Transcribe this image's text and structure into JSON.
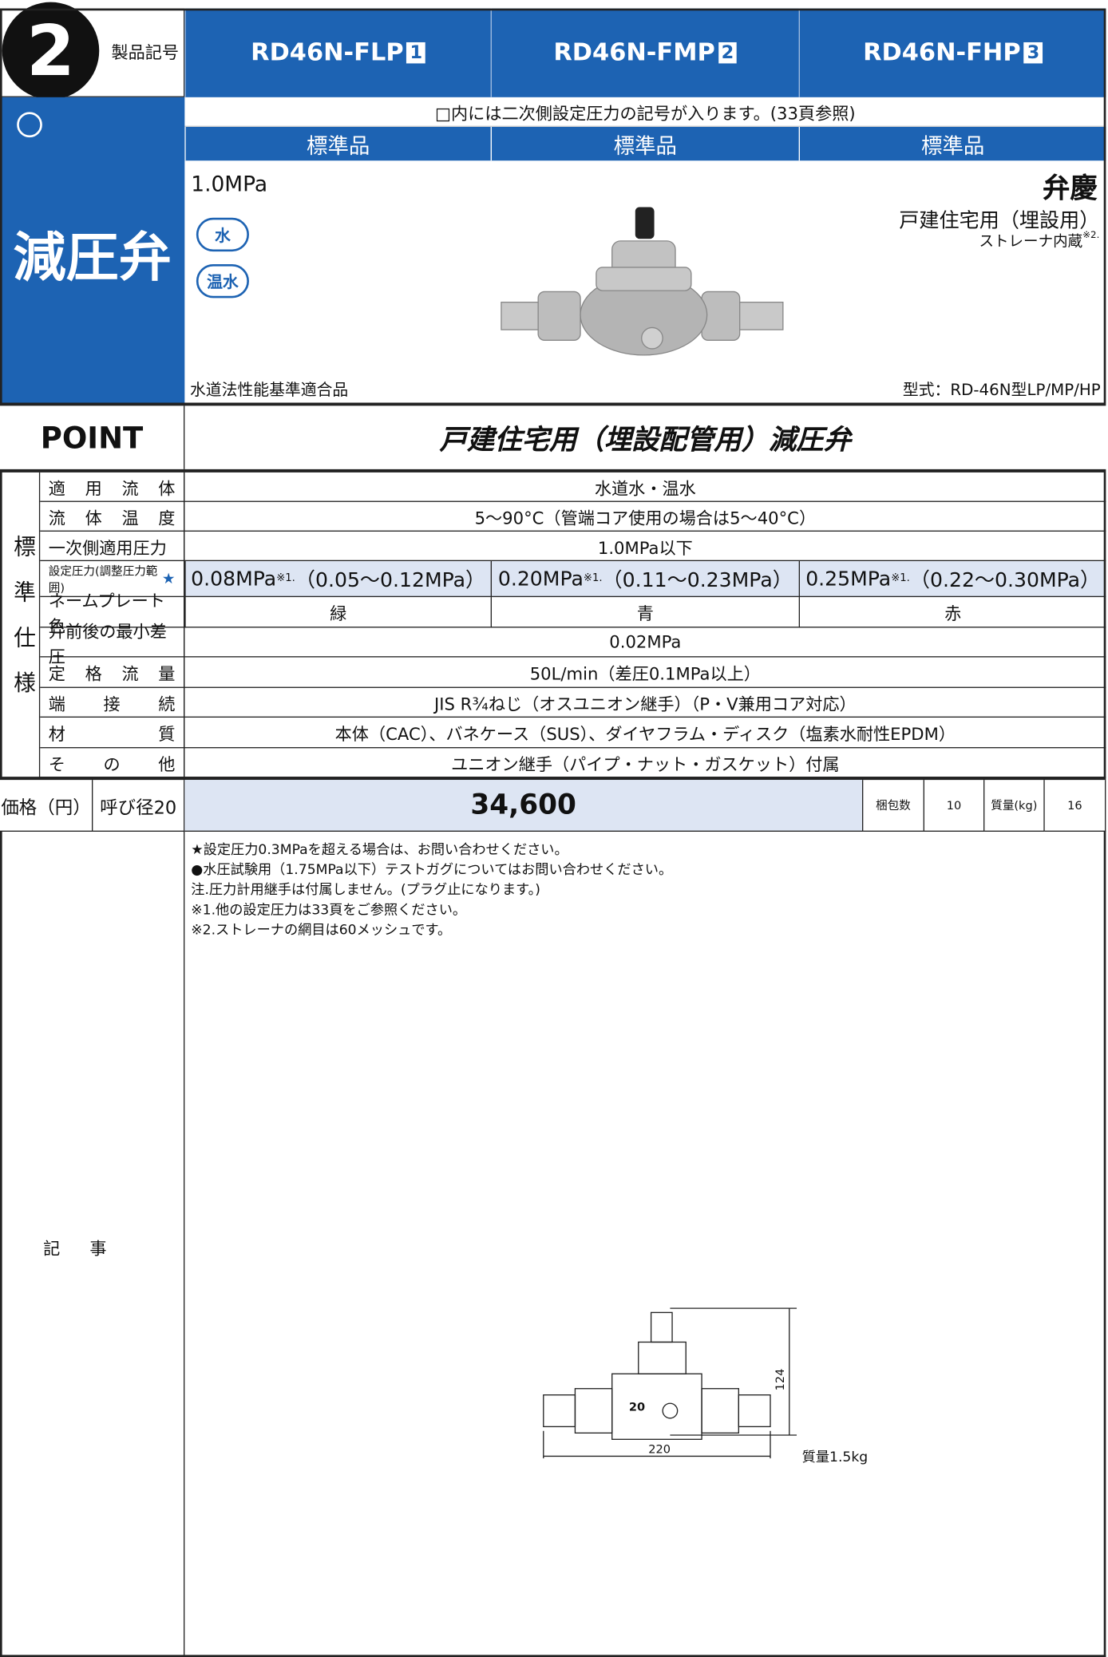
{
  "header": {
    "section_number": "2",
    "product_code_label": "製品記号",
    "models": [
      {
        "name": "RD46N-FLP",
        "suffix": "1"
      },
      {
        "name": "RD46N-FMP",
        "suffix": "2"
      },
      {
        "name": "RD46N-FHP",
        "suffix": "3"
      }
    ],
    "note": "□内には二次側設定圧力の記号が入ります。(33頁参照)",
    "grades": [
      "標準品",
      "標準品",
      "標準品"
    ]
  },
  "product": {
    "category": "減圧弁",
    "max_pressure": "1.0MPa",
    "fluids": [
      "水",
      "温水"
    ],
    "brand": "弁慶",
    "usage": "戸建住宅用（埋設用）",
    "strainer": "ストレーナ内蔵",
    "strainer_note": "※2.",
    "certification": "水道法性能基準適合品",
    "model_type": "型式：RD-46N型LP/MP/HP"
  },
  "point": {
    "label": "POINT",
    "text": "戸建住宅用（埋設配管用）減圧弁"
  },
  "spec": {
    "group_label": "標準仕様",
    "rows": [
      {
        "label": "適用流体",
        "value": "水道水・温水"
      },
      {
        "label": "流体温度",
        "value": "5〜90°C（管端コア使用の場合は5〜40°C）"
      },
      {
        "label": "一次側適用圧力",
        "value": "1.0MPa以下"
      },
      {
        "label": "設定圧力(調整圧力範囲)",
        "mark": "★",
        "values": [
          {
            "value": "0.08MPa",
            "note": "※1.",
            "range": "（0.05〜0.12MPa）"
          },
          {
            "value": "0.20MPa",
            "note": "※1.",
            "range": "（0.11〜0.23MPa）"
          },
          {
            "value": "0.25MPa",
            "note": "※1.",
            "range": "（0.22〜0.30MPa）"
          }
        ]
      },
      {
        "label": "ネームプレート色",
        "values": [
          "緑",
          "青",
          "赤"
        ]
      },
      {
        "label": "弁前後の最小差圧",
        "value": "0.02MPa"
      },
      {
        "label": "定格流量",
        "value": "50L/min（差圧0.1MPa以上）"
      },
      {
        "label": "端接続",
        "value": "JIS R¾ねじ（オスユニオン継手）（P・V兼用コア対応）"
      },
      {
        "label": "材質",
        "value": "本体（CAC）、バネケース（SUS）、ダイヤフラム・ディスク（塩素水耐性EPDM）"
      },
      {
        "label": "その他",
        "value": "ユニオン継手（パイプ・ナット・ガスケット）付属"
      }
    ]
  },
  "price": {
    "label": "価格（円）",
    "size": "呼び径20",
    "value": "34,600",
    "pack_label": "梱包数",
    "pack": "10",
    "weight_label": "質量(kg)",
    "weight": "16"
  },
  "notes": {
    "label": "記事",
    "items": [
      "★設定圧力0.3MPaを超える場合は、お問い合わせください。",
      "●水圧試験用（1.75MPa以下）テストガグについてはお問い合わせください。",
      "注.圧力計用継手は付属しません。(プラグ止になります。)",
      "※1.他の設定圧力は33頁をご参照ください。",
      "※2.ストレーナの網目は60メッシュです。"
    ]
  },
  "drawing": {
    "height": "124",
    "width": "220",
    "size": "20",
    "mass": "質量1.5kg"
  }
}
